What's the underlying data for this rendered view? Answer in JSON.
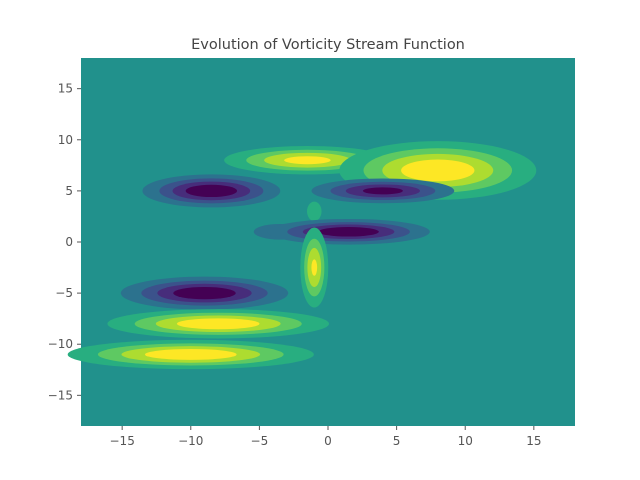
{
  "chart_data": {
    "type": "heatmap",
    "subtype": "filled-contour",
    "title": "Evolution of Vorticity Stream Function",
    "xlabel": "",
    "ylabel": "",
    "xlim": [
      -18,
      18
    ],
    "ylim": [
      -18,
      18
    ],
    "xticks": [
      -15,
      -10,
      -5,
      0,
      5,
      10,
      15
    ],
    "yticks": [
      -15,
      -10,
      -5,
      0,
      5,
      10,
      15
    ],
    "xtick_labels": [
      "−15",
      "−10",
      "−5",
      "0",
      "5",
      "10",
      "15"
    ],
    "ytick_labels": [
      "−15",
      "−10",
      "−5",
      "0",
      "5",
      "10",
      "15"
    ],
    "colormap": "viridis",
    "background_level_color": "#21918c",
    "grid": false,
    "features": [
      {
        "kind": "low",
        "x": -8.5,
        "y": 5,
        "sx": 2.8,
        "sy": 0.9,
        "amp": -1.0
      },
      {
        "kind": "high",
        "x": -1.5,
        "y": 8,
        "sx": 3.5,
        "sy": 0.8,
        "amp": 0.9
      },
      {
        "kind": "high",
        "x": 8,
        "y": 7,
        "sx": 4.0,
        "sy": 1.6,
        "amp": 1.0
      },
      {
        "kind": "low",
        "x": 4,
        "y": 5,
        "sx": 3.0,
        "sy": 0.7,
        "amp": -0.9
      },
      {
        "kind": "high",
        "x": -1,
        "y": 3,
        "sx": 0.5,
        "sy": 0.9,
        "amp": 0.35
      },
      {
        "kind": "low",
        "x": -3.5,
        "y": 1,
        "sx": 1.5,
        "sy": 0.6,
        "amp": -0.45
      },
      {
        "kind": "low",
        "x": 1.5,
        "y": 1,
        "sx": 3.3,
        "sy": 0.7,
        "amp": -1.0
      },
      {
        "kind": "high",
        "x": -1,
        "y": -2.5,
        "sx": 0.6,
        "sy": 2.3,
        "amp": 0.85
      },
      {
        "kind": "low",
        "x": -9,
        "y": -5,
        "sx": 3.4,
        "sy": 0.9,
        "amp": -1.0
      },
      {
        "kind": "high",
        "x": -8,
        "y": -8,
        "sx": 4.5,
        "sy": 0.8,
        "amp": 1.0
      },
      {
        "kind": "high",
        "x": -10,
        "y": -11,
        "sx": 5.0,
        "sy": 0.8,
        "amp": 1.0
      }
    ]
  }
}
